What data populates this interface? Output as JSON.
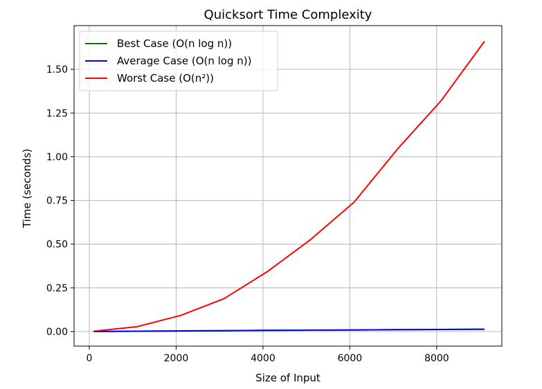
{
  "chart_data": {
    "type": "line",
    "title": "Quicksort Time Complexity",
    "xlabel": "Size of Input",
    "ylabel": "Time (seconds)",
    "xlim": [
      -350,
      9500
    ],
    "ylim": [
      -0.083,
      1.75
    ],
    "xticks": [
      0,
      2000,
      4000,
      6000,
      8000
    ],
    "xtick_labels": [
      "0",
      "2000",
      "4000",
      "6000",
      "8000"
    ],
    "yticks": [
      0.0,
      0.25,
      0.5,
      0.75,
      1.0,
      1.25,
      1.5
    ],
    "ytick_labels": [
      "0.00",
      "0.25",
      "0.50",
      "0.75",
      "1.00",
      "1.25",
      "1.50"
    ],
    "grid": true,
    "legend_position": "top-left",
    "x": [
      100,
      1100,
      2100,
      3100,
      4100,
      5100,
      6100,
      7100,
      8100,
      9100
    ],
    "series": [
      {
        "name": "Best Case (O(n log n))",
        "color": "#008000",
        "values": [
          0.0003,
          0.002,
          0.004,
          0.005,
          0.007,
          0.008,
          0.009,
          0.011,
          0.012,
          0.014
        ]
      },
      {
        "name": "Average Case (O(n log n))",
        "color": "#0000ff",
        "values": [
          0.0003,
          0.002,
          0.004,
          0.005,
          0.007,
          0.008,
          0.009,
          0.011,
          0.012,
          0.013
        ]
      },
      {
        "name": "Worst Case (O(n²))",
        "color": "#ff0000",
        "values": [
          0.002,
          0.028,
          0.092,
          0.188,
          0.343,
          0.527,
          0.741,
          1.045,
          1.32,
          1.66
        ]
      }
    ]
  }
}
